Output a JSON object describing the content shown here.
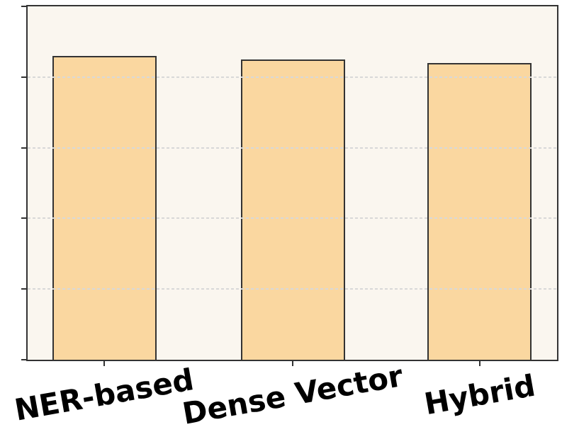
{
  "chart_data": {
    "type": "bar",
    "categories": [
      "NER-based",
      "Dense Vector",
      "Hybrid"
    ],
    "values": [
      0.86,
      0.85,
      0.84
    ],
    "title": "",
    "xlabel": "",
    "ylabel": "",
    "ylim": [
      0,
      1.0
    ],
    "yticks": [
      0,
      0.2,
      0.4,
      0.6,
      0.8,
      1.0
    ],
    "ytick_labels_visible": false,
    "xtick_label_rotation_deg": 10,
    "grid": "horizontal-dashed",
    "legend": null,
    "colors": {
      "bar_fill": "#FAD7A0",
      "bar_edge": "#333333",
      "spine": "#333333",
      "plot_background": "#FAF6EF",
      "figure_background": "#FFFFFF",
      "gridline": "#D8D8D8",
      "label_text": "#000000"
    }
  }
}
